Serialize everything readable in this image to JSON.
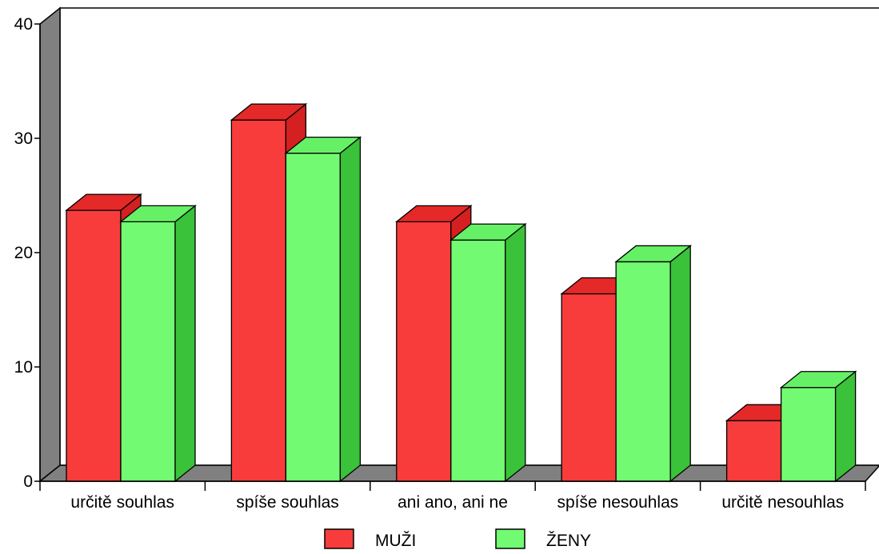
{
  "chart_data": {
    "type": "bar",
    "title": "",
    "xlabel": "",
    "ylabel": "",
    "categories": [
      "určitě souhlas",
      "spíše souhlas",
      "ani ano, ani ne",
      "spíše nesouhlas",
      "určitě nesouhlas"
    ],
    "series": [
      {
        "name": "MUŽI",
        "values": [
          23.7,
          31.6,
          22.7,
          16.4,
          5.3
        ],
        "color": "#f83c3c",
        "side_color": "#d42020",
        "top_color": "#e52828"
      },
      {
        "name": "ŽENY",
        "values": [
          22.7,
          28.7,
          21.1,
          19.2,
          8.2
        ],
        "color": "#72fb72",
        "side_color": "#3ac23a",
        "top_color": "#66f066"
      }
    ],
    "ylim": [
      0,
      40
    ],
    "yticks": [
      0,
      10,
      20,
      30,
      40
    ],
    "grid": false,
    "three_d": true,
    "legend_position": "bottom-center"
  }
}
